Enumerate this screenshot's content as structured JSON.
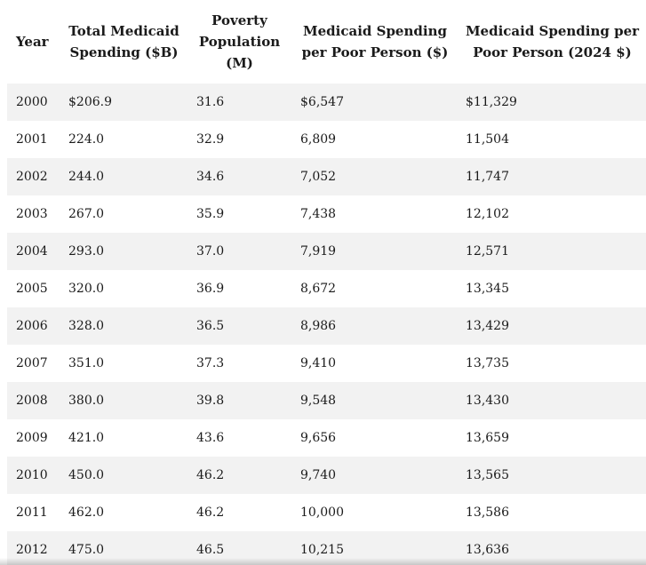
{
  "table": {
    "headers": [
      "Year",
      "Total Medicaid Spending ($B)",
      "Poverty Population (M)",
      "Medicaid Spending per Poor Person ($)",
      "Medicaid Spending per Poor Person (2024 $)"
    ],
    "rows": [
      [
        "2000",
        "$206.9",
        "31.6",
        "$6,547",
        "$11,329"
      ],
      [
        "2001",
        "224.0",
        "32.9",
        "6,809",
        "11,504"
      ],
      [
        "2002",
        "244.0",
        "34.6",
        "7,052",
        "11,747"
      ],
      [
        "2003",
        "267.0",
        "35.9",
        "7,438",
        "12,102"
      ],
      [
        "2004",
        "293.0",
        "37.0",
        "7,919",
        "12,571"
      ],
      [
        "2005",
        "320.0",
        "36.9",
        "8,672",
        "13,345"
      ],
      [
        "2006",
        "328.0",
        "36.5",
        "8,986",
        "13,429"
      ],
      [
        "2007",
        "351.0",
        "37.3",
        "9,410",
        "13,735"
      ],
      [
        "2008",
        "380.0",
        "39.8",
        "9,548",
        "13,430"
      ],
      [
        "2009",
        "421.0",
        "43.6",
        "9,656",
        "13,659"
      ],
      [
        "2010",
        "450.0",
        "46.2",
        "9,740",
        "13,565"
      ],
      [
        "2011",
        "462.0",
        "46.2",
        "10,000",
        "13,586"
      ],
      [
        "2012",
        "475.0",
        "46.5",
        "10,215",
        "13,636"
      ]
    ]
  },
  "colors": {
    "stripe": "#f2f2f2",
    "text": "#1a1a1a",
    "background": "#ffffff"
  }
}
